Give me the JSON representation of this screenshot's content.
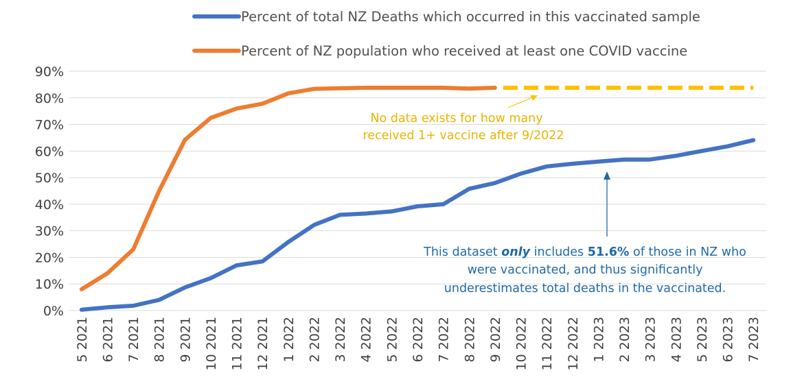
{
  "chart_data": {
    "type": "line",
    "title": "",
    "xlabel": "",
    "ylabel": "",
    "ylim": [
      0,
      90
    ],
    "ytick_step": 10,
    "ytick_suffix": "%",
    "grid": true,
    "legend_position": "top",
    "categories": [
      "5 2021",
      "6 2021",
      "7 2021",
      "8 2021",
      "9 2021",
      "10 2021",
      "11 2021",
      "12 2021",
      "1 2022",
      "2 2022",
      "3 2022",
      "4 2022",
      "5 2022",
      "6 2022",
      "7 2022",
      "8 2022",
      "9 2022",
      "10 2022",
      "11 2022",
      "12 2022",
      "1 2023",
      "2 2023",
      "3 2023",
      "4 2023",
      "5 2023",
      "6 2023",
      "7 2023"
    ],
    "series": [
      {
        "name": "Percent of total NZ Deaths which occurred in this vaccinated sample",
        "color": "#4472c4",
        "values": [
          0.3,
          1.2,
          1.8,
          4,
          8.7,
          12.2,
          17,
          18.5,
          25.8,
          32.2,
          36,
          36.5,
          37.3,
          39.2,
          40,
          45.8,
          48,
          51.5,
          54.2,
          55.2,
          56,
          56.8,
          56.8,
          58.2,
          60,
          61.8,
          64.1
        ]
      },
      {
        "name": "Percent of NZ population who received at least one COVID vaccine",
        "color": "#ed7d31",
        "values": [
          8,
          14,
          23,
          45,
          64.2,
          72.5,
          76,
          77.8,
          81.7,
          83.4,
          83.6,
          83.8,
          83.8,
          83.8,
          83.8,
          83.5,
          83.8,
          null,
          null,
          null,
          null,
          null,
          null,
          null,
          null,
          null,
          null
        ]
      }
    ],
    "projection": {
      "name": "no-data-projection",
      "color": "#ffc000",
      "start_category": "9 2022",
      "end_category": "7 2023",
      "value": 83.8
    },
    "annotations": [
      {
        "id": "no-data",
        "lines": [
          "No data exists for how many",
          "received 1+ vaccine after 9/2022"
        ],
        "color": "#e8b400"
      },
      {
        "id": "dataset",
        "line1_before": "This dataset ",
        "line1_em": "only",
        "line1_mid": " includes ",
        "line1_bold": "51.6%",
        "line1_after": " of those in NZ who",
        "line2": "were vaccinated, and thus significantly",
        "line3": "underestimates total deaths in the vaccinated.",
        "color": "#1f6aa8"
      }
    ]
  }
}
